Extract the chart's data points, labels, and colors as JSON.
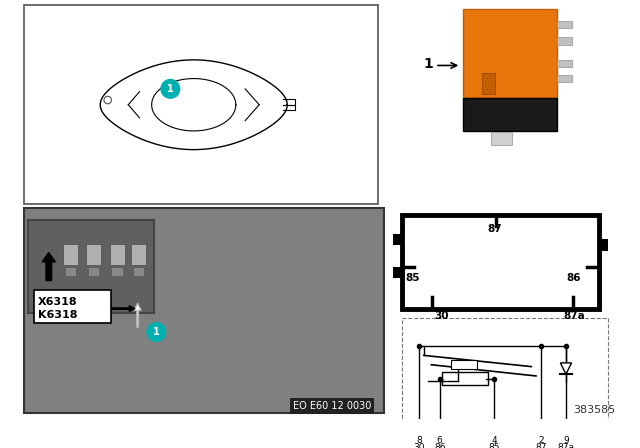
{
  "bg_color": "#ffffff",
  "relay_color": "#e8760a",
  "relay_dark": "#c06000",
  "relay_black": "#1a1a1a",
  "pin_labels_box": [
    "30",
    "87a",
    "85",
    "86",
    "87"
  ],
  "term_labels_top": [
    "8",
    "6",
    "4",
    "2",
    "9"
  ],
  "term_labels_bot": [
    "30",
    "86",
    "85",
    "87",
    "87a"
  ],
  "part_label": "1",
  "catalog_number": "383585",
  "diagram_code": "EO E60 12 0030",
  "k_label": "K6318",
  "x_label": "X6318",
  "teal": "#00b0b0",
  "photo_bg": "#888888",
  "inset_bg": "#aaaaaa"
}
